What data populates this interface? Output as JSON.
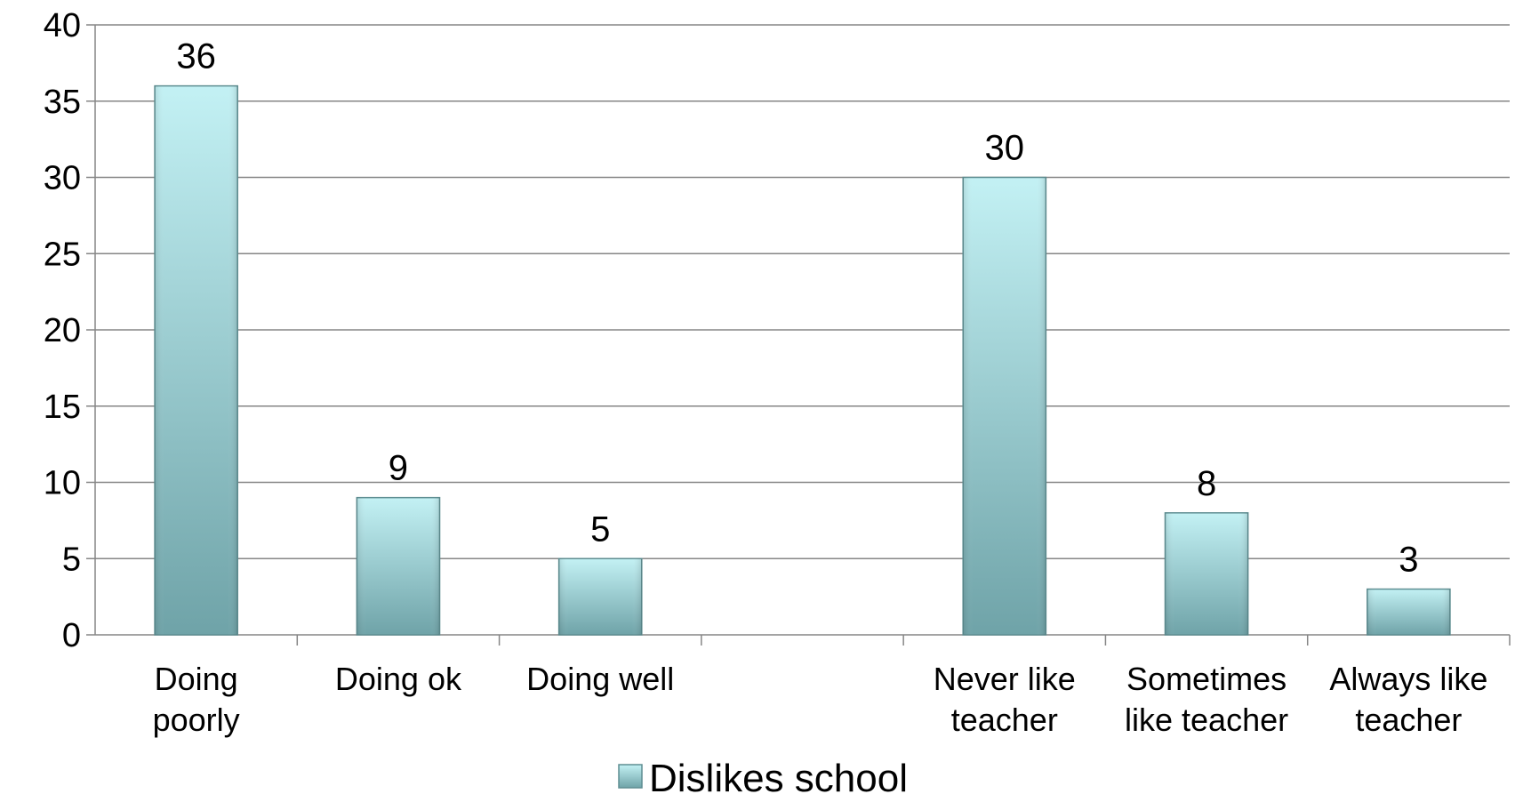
{
  "chart_data": {
    "type": "bar",
    "categories": [
      [
        "Doing",
        "poorly"
      ],
      [
        "Doing ok"
      ],
      [
        "Doing well"
      ],
      [
        ""
      ],
      [
        "Never like",
        "teacher"
      ],
      [
        "Sometimes",
        "like teacher"
      ],
      [
        "Always like",
        "teacher"
      ]
    ],
    "series": [
      {
        "name": "Dislikes school",
        "values": [
          36,
          9,
          5,
          null,
          30,
          8,
          3
        ]
      }
    ],
    "ylim": [
      0,
      40
    ],
    "yticks": [
      0,
      5,
      10,
      15,
      20,
      25,
      30,
      35,
      40
    ],
    "grid": true,
    "legend_position": "bottom",
    "colors": {
      "bar_top": "#c3f1f4",
      "bar_bottom": "#6fa3a8",
      "bar_edge": "#5e8e92",
      "grid": "#868686",
      "axis": "#868686"
    }
  }
}
